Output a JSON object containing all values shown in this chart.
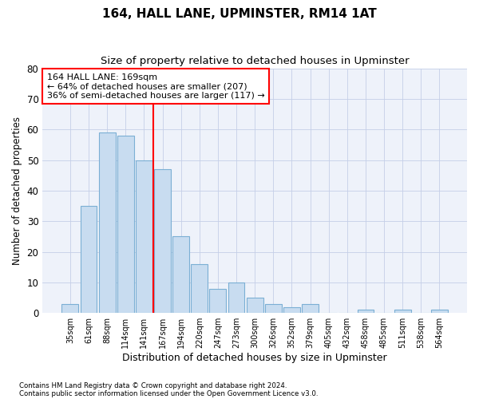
{
  "title": "164, HALL LANE, UPMINSTER, RM14 1AT",
  "subtitle": "Size of property relative to detached houses in Upminster",
  "xlabel": "Distribution of detached houses by size in Upminster",
  "ylabel": "Number of detached properties",
  "categories": [
    "35sqm",
    "61sqm",
    "88sqm",
    "114sqm",
    "141sqm",
    "167sqm",
    "194sqm",
    "220sqm",
    "247sqm",
    "273sqm",
    "300sqm",
    "326sqm",
    "352sqm",
    "379sqm",
    "405sqm",
    "432sqm",
    "458sqm",
    "485sqm",
    "511sqm",
    "538sqm",
    "564sqm"
  ],
  "values": [
    3,
    35,
    59,
    58,
    50,
    47,
    25,
    16,
    8,
    10,
    5,
    3,
    2,
    3,
    0,
    0,
    1,
    0,
    1,
    0,
    1
  ],
  "bar_color": "#c8dcf0",
  "bar_edge_color": "#7bafd4",
  "vline_index": 4,
  "vline_color": "red",
  "ylim": [
    0,
    80
  ],
  "yticks": [
    0,
    10,
    20,
    30,
    40,
    50,
    60,
    70,
    80
  ],
  "annotation_line1": "164 HALL LANE: 169sqm",
  "annotation_line2": "← 64% of detached houses are smaller (207)",
  "annotation_line3": "36% of semi-detached houses are larger (117) →",
  "annotation_box_color": "red",
  "footnote1": "Contains HM Land Registry data © Crown copyright and database right 2024.",
  "footnote2": "Contains public sector information licensed under the Open Government Licence v3.0.",
  "background_color": "#eef2fa",
  "grid_color": "#c5cfe8"
}
